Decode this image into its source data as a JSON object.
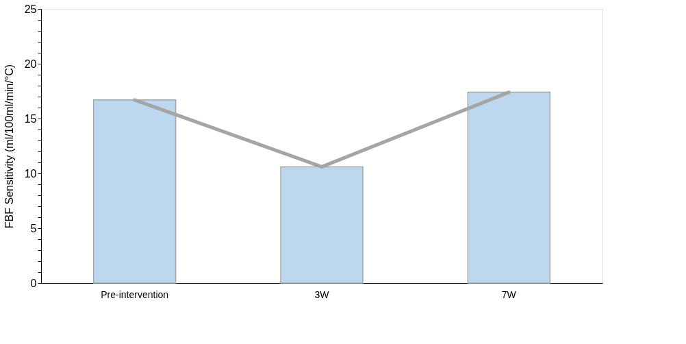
{
  "chart_data": {
    "type": "bar",
    "ylabel": "FBF Sensitivity (ml/100ml/min/°C)",
    "categories": [
      "Pre-intervention",
      "3W",
      "7W"
    ],
    "series": [
      {
        "color": "#bdd7ee",
        "values": [
          16.7,
          10.6,
          17.4
        ]
      },
      {
        "type": "line",
        "color": "#a5a5a5",
        "values": [
          16.7,
          10.6,
          17.4
        ]
      }
    ],
    "ylim": [
      0,
      25
    ],
    "yticks": [
      0,
      {
        "value": 1,
        "label": null
      },
      {
        "value": 2,
        "label": null
      },
      {
        "value": 3,
        "label": null
      },
      {
        "value": 4,
        "label": null
      },
      5,
      {
        "value": 6,
        "label": null
      },
      {
        "value": 7,
        "label": null
      },
      {
        "value": 8,
        "label": null
      },
      {
        "value": 9,
        "label": null
      },
      10,
      {
        "value": 11,
        "label": null
      },
      {
        "value": 12,
        "label": null
      },
      {
        "value": 13,
        "label": null
      },
      {
        "value": 14,
        "label": null
      },
      15,
      {
        "value": 16,
        "label": null
      },
      {
        "value": 17,
        "label": null
      },
      {
        "value": 18,
        "label": null
      },
      {
        "value": 19,
        "label": null
      },
      20,
      {
        "value": 21,
        "label": null
      },
      {
        "value": 22,
        "label": null
      },
      {
        "value": 23,
        "label": null
      },
      {
        "value": 24,
        "label": null
      },
      25
    ],
    "line_style": "solid",
    "marker": "none"
  }
}
